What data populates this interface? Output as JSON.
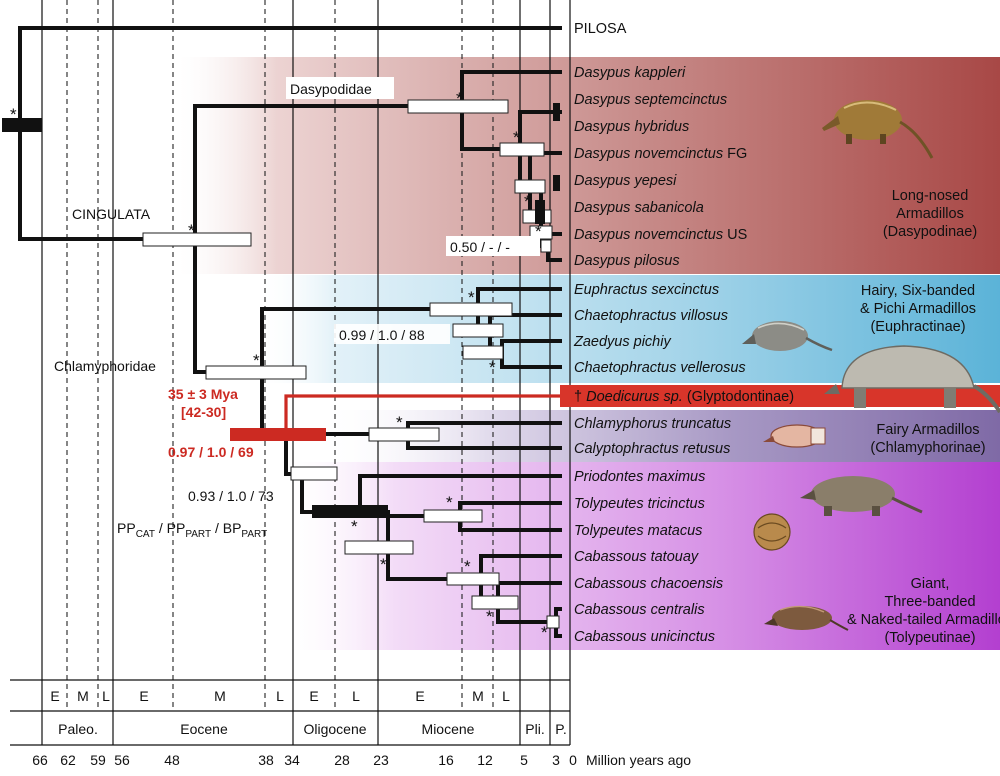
{
  "outgroup": "PILOSA",
  "clades": {
    "cingulata": "CINGULATA",
    "dasypodidae": "Dasypodidae",
    "chlamyphoridae": "Chlamyphoridae"
  },
  "taxa": [
    {
      "genus": "Dasypus",
      "epithet": "kappleri",
      "suffix": ""
    },
    {
      "genus": "Dasypus",
      "epithet": "septemcinctus",
      "suffix": ""
    },
    {
      "genus": "Dasypus",
      "epithet": "hybridus",
      "suffix": ""
    },
    {
      "genus": "Dasypus",
      "epithet": "novemcinctus",
      "suffix": "FG"
    },
    {
      "genus": "Dasypus",
      "epithet": "yepesi",
      "suffix": ""
    },
    {
      "genus": "Dasypus",
      "epithet": "sabanicola",
      "suffix": ""
    },
    {
      "genus": "Dasypus",
      "epithet": "novemcinctus",
      "suffix": "US"
    },
    {
      "genus": "Dasypus",
      "epithet": "pilosus",
      "suffix": ""
    },
    {
      "genus": "Euphractus",
      "epithet": "sexcinctus",
      "suffix": ""
    },
    {
      "genus": "Chaetophractus",
      "epithet": "villosus",
      "suffix": ""
    },
    {
      "genus": "Zaedyus",
      "epithet": "pichiy",
      "suffix": ""
    },
    {
      "genus": "Chaetophractus",
      "epithet": "vellerosus",
      "suffix": ""
    },
    {
      "genus": "Doedicurus",
      "epithet": "sp.",
      "suffix": "(Glyptodontinae)",
      "prefix": "† "
    },
    {
      "genus": "Chlamyphorus",
      "epithet": "truncatus",
      "suffix": ""
    },
    {
      "genus": "Calyptophractus",
      "epithet": "retusus",
      "suffix": ""
    },
    {
      "genus": "Priodontes",
      "epithet": "maximus",
      "suffix": ""
    },
    {
      "genus": "Tolypeutes",
      "epithet": "tricinctus",
      "suffix": ""
    },
    {
      "genus": "Tolypeutes",
      "epithet": "matacus",
      "suffix": ""
    },
    {
      "genus": "Cabassous",
      "epithet": "tatouay",
      "suffix": ""
    },
    {
      "genus": "Cabassous",
      "epithet": "chacoensis",
      "suffix": ""
    },
    {
      "genus": "Cabassous",
      "epithet": "centralis",
      "suffix": ""
    },
    {
      "genus": "Cabassous",
      "epithet": "unicinctus",
      "suffix": ""
    }
  ],
  "groups": [
    {
      "lines": [
        "Long-nosed",
        "Armadillos",
        "(Dasypodinae)"
      ],
      "color": "#a84846"
    },
    {
      "lines": [
        "Hairy, Six-banded",
        "& Pichi Armadillos",
        "(Euphractinae)"
      ],
      "color": "#5bb3d8"
    },
    {
      "lines": [
        "Fairy Armadillos",
        "(Chlamyphorinae)"
      ],
      "color": "#7f6aa6"
    },
    {
      "lines": [
        "Giant,",
        "Three-banded",
        "& Naked-tailed Armadillos",
        "(Tolypeutinae)"
      ],
      "color": "#b33fd0"
    }
  ],
  "support": {
    "star": "*",
    "dasypus_node": "0.50 / - / -",
    "euphractinae_node": "0.99 / 1.0 / 88",
    "glypto_node": "0.97 / 1.0  / 69",
    "chlamy_node": "0.93 / 1.0 / 73",
    "legend": {
      "pp": "PP",
      "cat": "CAT",
      "part": "PART",
      "bp": "BP",
      "sep": " / "
    }
  },
  "glypto_age": {
    "line1": "35 ± 3 Mya",
    "line2": "[42-30]"
  },
  "accent_color": "#cc2a22",
  "timescale": {
    "subepochs": [
      "E",
      "M",
      "L",
      "E",
      "M",
      "L",
      "E",
      "L",
      "E",
      "M",
      "L"
    ],
    "epochs": [
      "Paleo.",
      "Eocene",
      "Oligocene",
      "Miocene",
      "Pli.",
      "P."
    ],
    "ticks": [
      "66",
      "62",
      "59",
      "56",
      "48",
      "38",
      "34",
      "28",
      "23",
      "16",
      "12",
      "5",
      "3",
      "0"
    ],
    "unit": "Million years ago"
  }
}
